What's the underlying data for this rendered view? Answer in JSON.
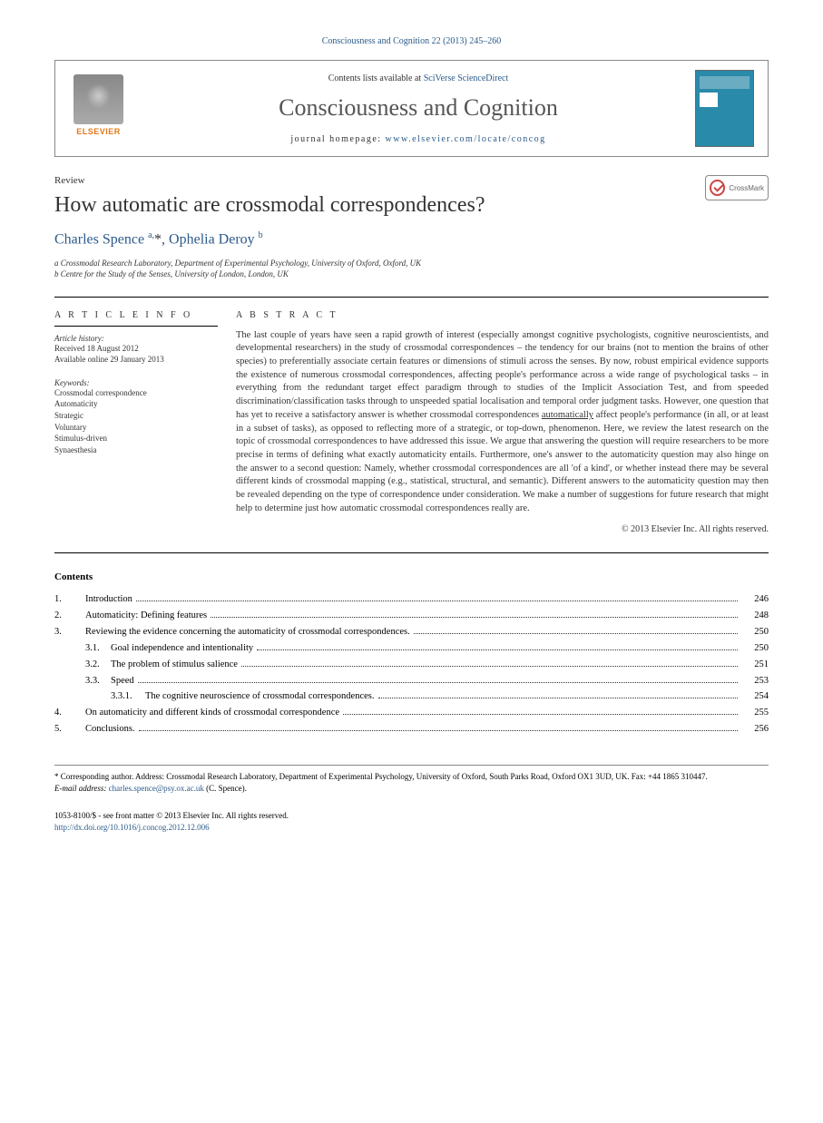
{
  "journal_ref": "Consciousness and Cognition 22 (2013) 245–260",
  "publisher": {
    "logo_label": "ELSEVIER",
    "contents_prefix": "Contents lists available at ",
    "contents_link": "SciVerse ScienceDirect",
    "journal_name": "Consciousness and Cognition",
    "homepage_prefix": "journal homepage: ",
    "homepage_url": "www.elsevier.com/locate/concog"
  },
  "crossmark_label": "CrossMark",
  "article": {
    "type": "Review",
    "title": "How automatic are crossmodal correspondences?",
    "authors_html": "Charles Spence <sup>a,</sup><span class='star'>*</span>, Ophelia Deroy <sup>b</sup>",
    "affiliations": [
      "a Crossmodal Research Laboratory, Department of Experimental Psychology, University of Oxford, Oxford, UK",
      "b Centre for the Study of the Senses, University of London, London, UK"
    ]
  },
  "article_info": {
    "heading": "A R T I C L E   I N F O",
    "history_label": "Article history:",
    "received": "Received 18 August 2012",
    "online": "Available online 29 January 2013",
    "keywords_label": "Keywords:",
    "keywords": [
      "Crossmodal correspondence",
      "Automaticity",
      "Strategic",
      "Voluntary",
      "Stimulus-driven",
      "Synaesthesia"
    ]
  },
  "abstract": {
    "heading": "A B S T R A C T",
    "text": "The last couple of years have seen a rapid growth of interest (especially amongst cognitive psychologists, cognitive neuroscientists, and developmental researchers) in the study of crossmodal correspondences – the tendency for our brains (not to mention the brains of other species) to preferentially associate certain features or dimensions of stimuli across the senses. By now, robust empirical evidence supports the existence of numerous crossmodal correspondences, affecting people's performance across a wide range of psychological tasks – in everything from the redundant target effect paradigm through to studies of the Implicit Association Test, and from speeded discrimination/classification tasks through to unspeeded spatial localisation and temporal order judgment tasks. However, one question that has yet to receive a satisfactory answer is whether crossmodal correspondences automatically affect people's performance (in all, or at least in a subset of tasks), as opposed to reflecting more of a strategic, or top-down, phenomenon. Here, we review the latest research on the topic of crossmodal correspondences to have addressed this issue. We argue that answering the question will require researchers to be more precise in terms of defining what exactly automaticity entails. Furthermore, one's answer to the automaticity question may also hinge on the answer to a second question: Namely, whether crossmodal correspondences are all 'of a kind', or whether instead there may be several different kinds of crossmodal mapping (e.g., statistical, structural, and semantic). Different answers to the automaticity question may then be revealed depending on the type of correspondence under consideration. We make a number of suggestions for future research that might help to determine just how automatic crossmodal correspondences really are.",
    "copyright": "© 2013 Elsevier Inc. All rights reserved."
  },
  "contents": {
    "heading": "Contents",
    "items": [
      {
        "num": "1.",
        "title": "Introduction",
        "page": "246",
        "lvl": 1
      },
      {
        "num": "2.",
        "title": "Automaticity: Defining features",
        "page": "248",
        "lvl": 1
      },
      {
        "num": "3.",
        "title": "Reviewing the evidence concerning the automaticity of crossmodal correspondences.",
        "page": "250",
        "lvl": 1
      },
      {
        "num": "3.1.",
        "title": "Goal independence and intentionality",
        "page": "250",
        "lvl": 2
      },
      {
        "num": "3.2.",
        "title": "The problem of stimulus salience",
        "page": "251",
        "lvl": 2
      },
      {
        "num": "3.3.",
        "title": "Speed",
        "page": "253",
        "lvl": 2
      },
      {
        "num": "3.3.1.",
        "title": "The cognitive neuroscience of crossmodal correspondences.",
        "page": "254",
        "lvl": 3
      },
      {
        "num": "4.",
        "title": "On automaticity and different kinds of crossmodal correspondence",
        "page": "255",
        "lvl": 1
      },
      {
        "num": "5.",
        "title": "Conclusions.",
        "page": "256",
        "lvl": 1
      }
    ]
  },
  "footer": {
    "corr_prefix": "* Corresponding author. Address: Crossmodal Research Laboratory, Department of Experimental Psychology, University of Oxford, South Parks Road, Oxford OX1 3UD, UK. Fax: +44 1865 310447.",
    "email_label": "E-mail address: ",
    "email": "charles.spence@psy.ox.ac.uk",
    "email_suffix": " (C. Spence).",
    "issn_line": "1053-8100/$ - see front matter © 2013 Elsevier Inc. All rights reserved.",
    "doi": "http://dx.doi.org/10.1016/j.concog.2012.12.006"
  }
}
